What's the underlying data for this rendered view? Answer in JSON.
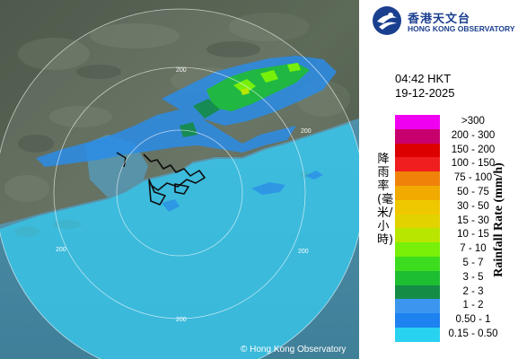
{
  "logo": {
    "cn": "香港天文台",
    "en": "HONG KONG OBSERVATORY"
  },
  "time": "04:42 HKT",
  "date": "19-12-2025",
  "map": {
    "range_labels": [
      "200",
      "200",
      "200",
      "200",
      "200"
    ],
    "copyright": "© Hong Kong Observatory"
  },
  "legend": {
    "title_cn": "降雨率(毫米/小時)",
    "title_en": "Rainfall Rate (mm/h)",
    "items": [
      {
        "label": ">300",
        "color": "#f000f0"
      },
      {
        "label": "200 - 300",
        "color": "#c8006e"
      },
      {
        "label": "150 - 200",
        "color": "#dc0000"
      },
      {
        "label": "100 - 150",
        "color": "#f01e1e"
      },
      {
        "label": "75 - 100",
        "color": "#f0820a"
      },
      {
        "label": "50 - 75",
        "color": "#f0aa00"
      },
      {
        "label": "30 - 50",
        "color": "#f0c800"
      },
      {
        "label": "15 - 30",
        "color": "#e1d200"
      },
      {
        "label": "10 - 15",
        "color": "#b9e600"
      },
      {
        "label": "7 - 10",
        "color": "#78f00a"
      },
      {
        "label": "5 - 7",
        "color": "#3cdc1e"
      },
      {
        "label": "3 - 5",
        "color": "#1ebe32"
      },
      {
        "label": "2 - 3",
        "color": "#148c46"
      },
      {
        "label": "1 - 2",
        "color": "#3c96f0"
      },
      {
        "label": "0.50 - 1",
        "color": "#1e82f0"
      },
      {
        "label": "0.15 - 0.50",
        "color": "#28d2f0"
      }
    ]
  }
}
